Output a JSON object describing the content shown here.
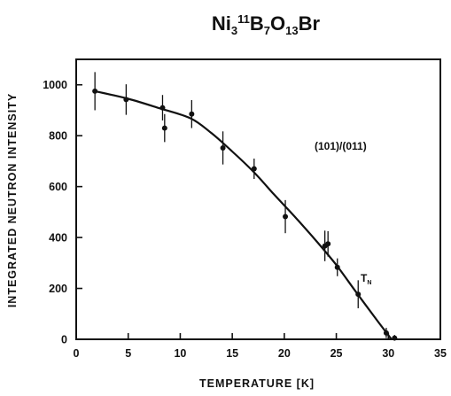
{
  "chart_data": {
    "type": "scatter",
    "title": "Ni3 11B7O13Br",
    "title_parts": {
      "element1": "Ni",
      "sub1": "3",
      "sup1": "11",
      "element2": "B",
      "sub2": "7",
      "element3": "O",
      "sub3": "13",
      "element4": "Br"
    },
    "xlabel": "TEMPERATURE [K]",
    "ylabel": "INTEGRATED NEUTRON INTENSITY",
    "xlim": [
      0,
      35
    ],
    "ylim": [
      0,
      1100
    ],
    "xticks": [
      0,
      5,
      10,
      15,
      20,
      25,
      30,
      35
    ],
    "yticks": [
      0,
      200,
      400,
      600,
      800,
      1000
    ],
    "grid": false,
    "legend": "none",
    "annotations": {
      "reflection": "(101)/(011)",
      "tn_main": "T",
      "tn_sub": "N"
    },
    "points": [
      {
        "x": 1.8,
        "y": 975,
        "err": 75
      },
      {
        "x": 4.8,
        "y": 942,
        "err": 60
      },
      {
        "x": 8.3,
        "y": 910,
        "err": 50
      },
      {
        "x": 8.5,
        "y": 830,
        "err": 55
      },
      {
        "x": 11.1,
        "y": 885,
        "err": 55
      },
      {
        "x": 14.1,
        "y": 752,
        "err": 65
      },
      {
        "x": 17.1,
        "y": 670,
        "err": 40
      },
      {
        "x": 20.1,
        "y": 482,
        "err": 65
      },
      {
        "x": 23.9,
        "y": 367,
        "err": 60
      },
      {
        "x": 24.2,
        "y": 375,
        "err": 50
      },
      {
        "x": 25.1,
        "y": 283,
        "err": 35
      },
      {
        "x": 27.1,
        "y": 177,
        "err": 55
      },
      {
        "x": 29.8,
        "y": 25,
        "err": 20
      },
      {
        "x": 30.6,
        "y": 5,
        "err": 12
      }
    ],
    "fit_curve": {
      "x": [
        1.8,
        5,
        8,
        11,
        13,
        15,
        17,
        19,
        21,
        23,
        25,
        27,
        29,
        30.3
      ],
      "y": [
        975,
        945,
        908,
        868,
        810,
        738,
        660,
        570,
        482,
        390,
        292,
        180,
        70,
        0
      ]
    }
  }
}
